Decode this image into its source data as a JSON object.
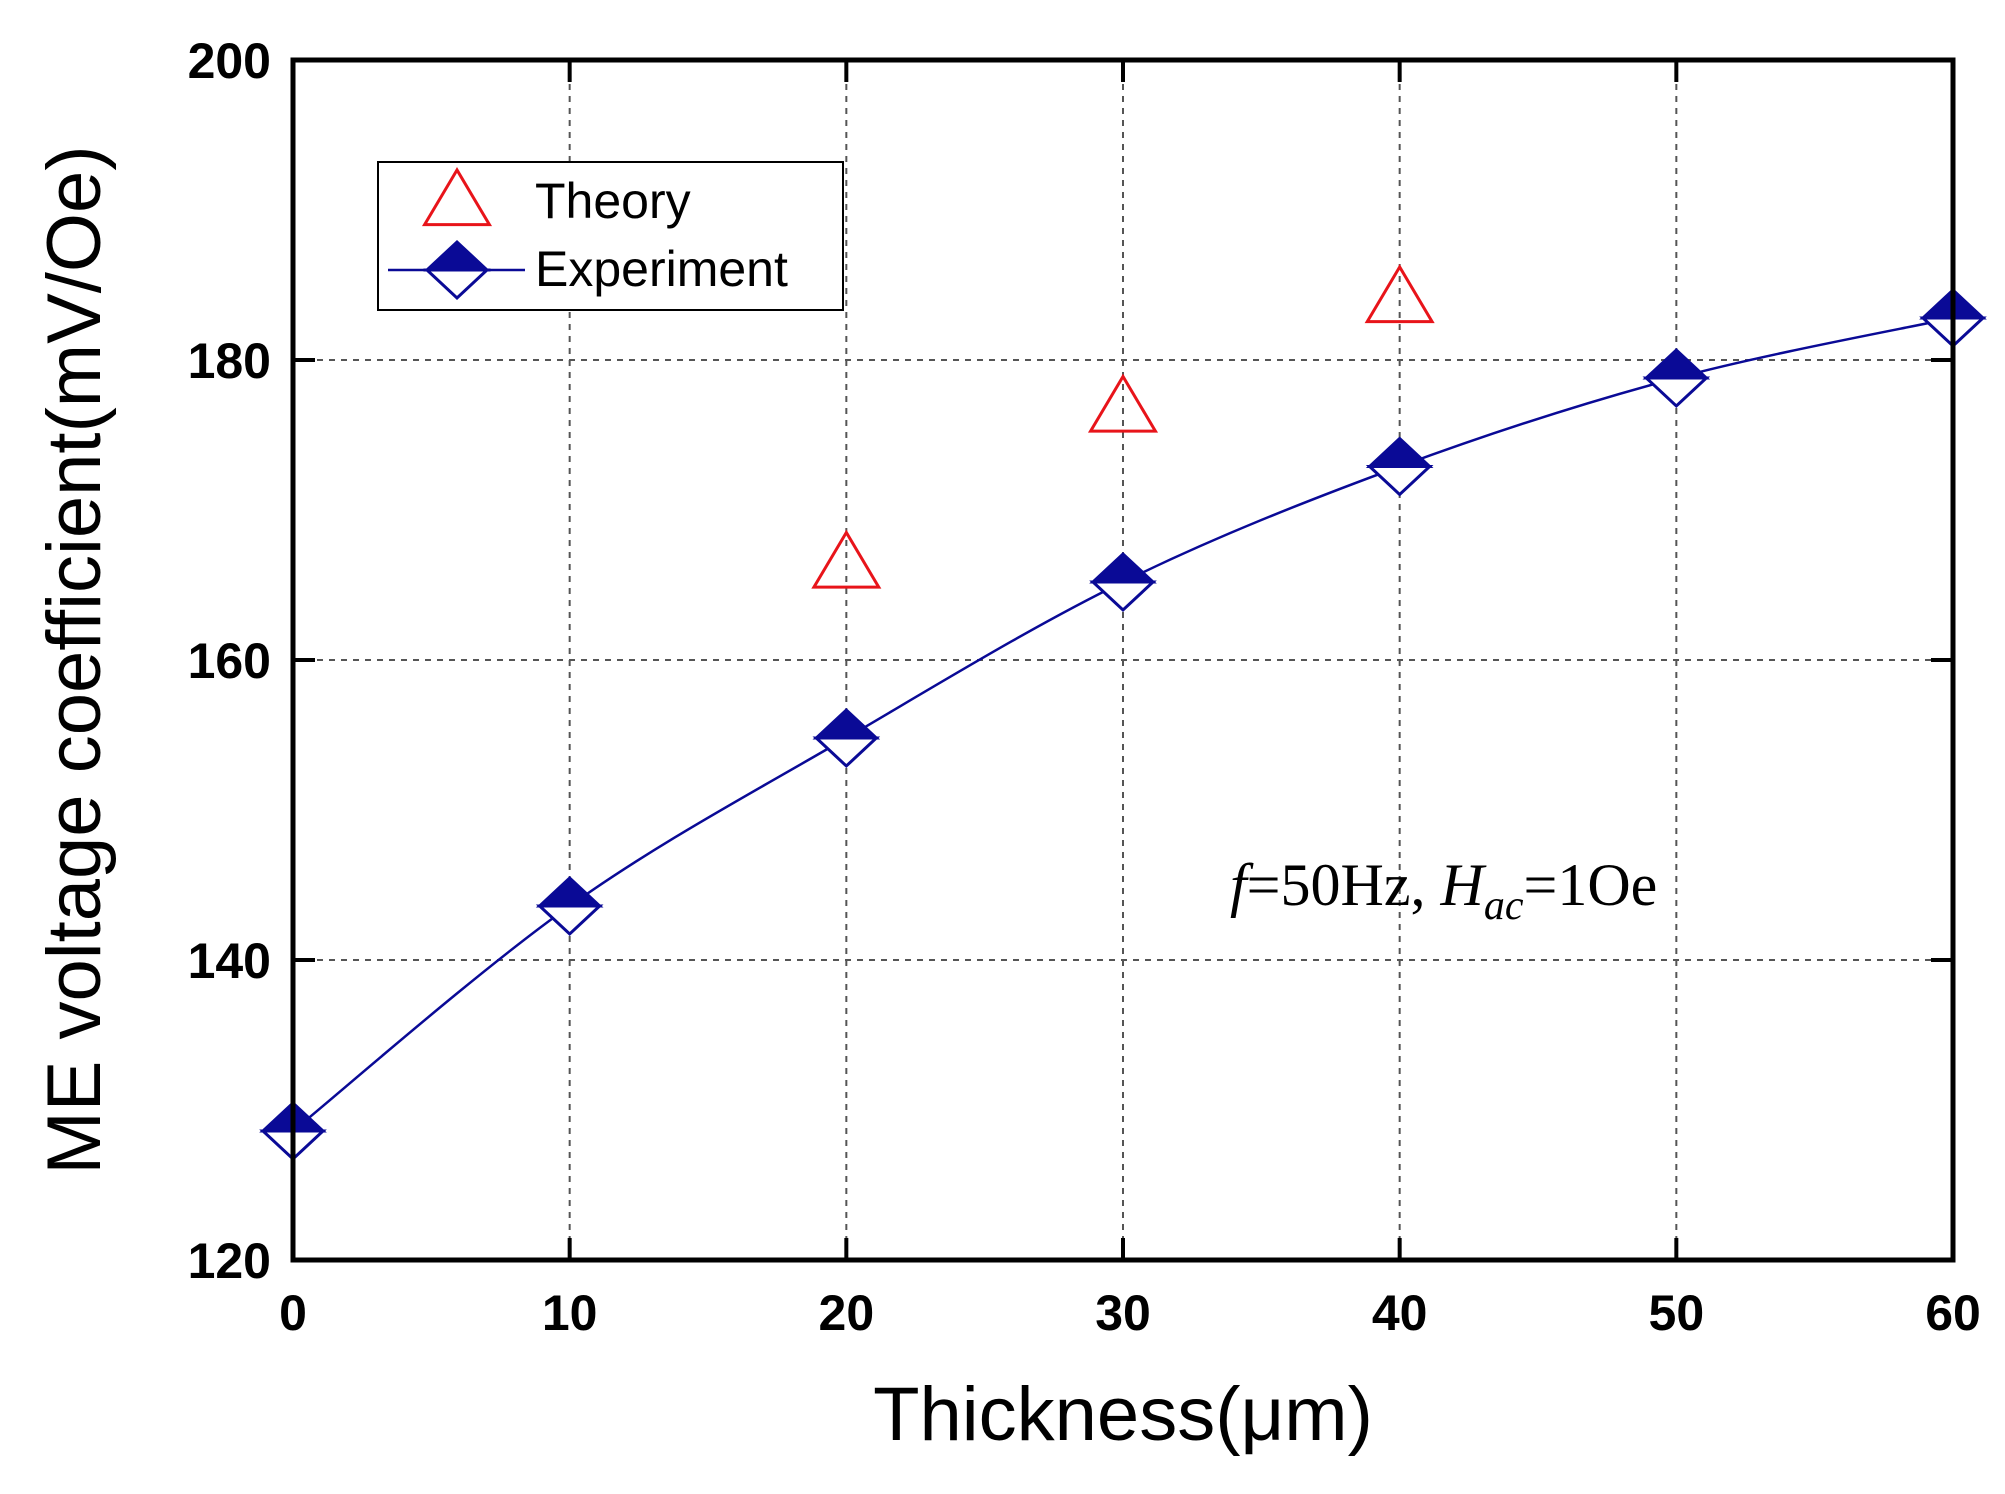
{
  "chart_data": {
    "type": "scatter",
    "title": "",
    "xlabel": "Thickness(μm)",
    "ylabel": "ME voltage coefficient(mV/Oe)",
    "xlim": [
      0,
      60
    ],
    "ylim": [
      120,
      200
    ],
    "xticks": [
      0,
      10,
      20,
      30,
      40,
      50,
      60
    ],
    "yticks": [
      120,
      140,
      160,
      180,
      200
    ],
    "grid": true,
    "legend_position": "top-left",
    "series": [
      {
        "name": "Theory",
        "marker": "open-triangle",
        "color": "#e8141a",
        "line": false,
        "x": [
          20,
          30,
          40
        ],
        "y": [
          166.5,
          176.9,
          184.2
        ]
      },
      {
        "name": "Experiment",
        "marker": "half-filled-diamond",
        "color": "#0a0a96",
        "line": true,
        "x": [
          0,
          10,
          20,
          30,
          40,
          50,
          60
        ],
        "y": [
          128.6,
          143.6,
          154.8,
          165.2,
          172.9,
          178.8,
          182.8
        ]
      }
    ],
    "annotation": {
      "f_symbol": "f",
      "f_value": "=50Hz, ",
      "h_symbol": "H",
      "h_subscript": "ac",
      "h_value": "=1Oe"
    }
  }
}
